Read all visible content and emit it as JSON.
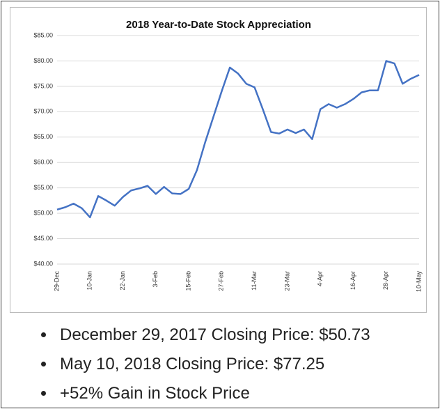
{
  "chart_data": {
    "type": "line",
    "title": "2018 Year-to-Date Stock Appreciation",
    "categories": [
      "29-Dec",
      null,
      null,
      null,
      "10-Jan",
      null,
      null,
      null,
      "22-Jan",
      null,
      null,
      null,
      "3-Feb",
      null,
      null,
      null,
      "15-Feb",
      null,
      null,
      null,
      "27-Feb",
      null,
      null,
      null,
      "11-Mar",
      null,
      null,
      null,
      "23-Mar",
      null,
      null,
      null,
      "4-Apr",
      null,
      null,
      null,
      "16-Apr",
      null,
      null,
      null,
      "28-Apr",
      null,
      null,
      null,
      "10-May"
    ],
    "series": [
      {
        "color": "#4472c4",
        "values": [
          50.73,
          51.2,
          51.9,
          51.0,
          49.2,
          53.4,
          52.5,
          51.5,
          53.2,
          54.5,
          54.9,
          55.4,
          53.8,
          55.2,
          53.9,
          53.8,
          54.8,
          58.5,
          64,
          69,
          74,
          78.7,
          77.5,
          75.5,
          74.8,
          70.5,
          66,
          65.7,
          66.5,
          65.8,
          66.5,
          64.6,
          70.5,
          71.5,
          70.8,
          71.5,
          72.5,
          73.8,
          74.2,
          74.2,
          80.0,
          79.5,
          75.5,
          76.5,
          77.25
        ]
      }
    ],
    "ylim": [
      40,
      85
    ],
    "yticks": [
      {
        "value": 40,
        "label": "$40.00"
      },
      {
        "value": 45,
        "label": "$45.00"
      },
      {
        "value": 50,
        "label": "$50.00"
      },
      {
        "value": 55,
        "label": "$55.00"
      },
      {
        "value": 60,
        "label": "$60.00"
      },
      {
        "value": 65,
        "label": "$65.00"
      },
      {
        "value": 70,
        "label": "$70.00"
      },
      {
        "value": 75,
        "label": "$75.00"
      },
      {
        "value": 80,
        "label": "$80.00"
      },
      {
        "value": 85,
        "label": "$85.00"
      }
    ],
    "grid": true
  },
  "notes": [
    "December 29, 2017 Closing Price: $50.73",
    "May 10, 2018 Closing Price: $77.25",
    "+52% Gain in Stock Price"
  ]
}
